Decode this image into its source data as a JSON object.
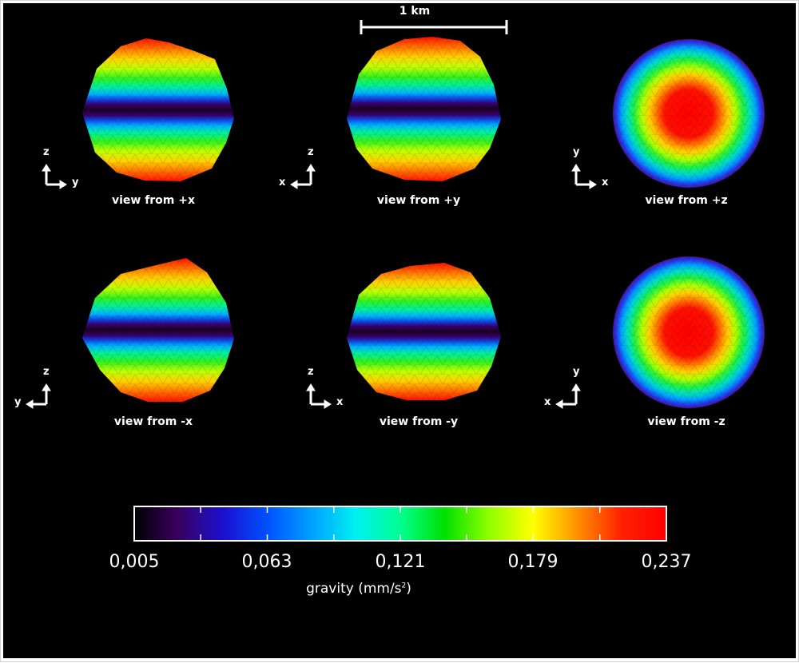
{
  "scale_bar": {
    "label": "1 km"
  },
  "views": [
    {
      "label": "view from +x",
      "axis_up": "z",
      "axis_side": "y",
      "side_dir": "right",
      "pattern": "band"
    },
    {
      "label": "view from +y",
      "axis_up": "z",
      "axis_side": "x",
      "side_dir": "left",
      "pattern": "band"
    },
    {
      "label": "view from +z",
      "axis_up": "y",
      "axis_side": "x",
      "side_dir": "right",
      "pattern": "pole"
    },
    {
      "label": "view from -x",
      "axis_up": "z",
      "axis_side": "y",
      "side_dir": "left",
      "pattern": "band"
    },
    {
      "label": "view from -y",
      "axis_up": "z",
      "axis_side": "x",
      "side_dir": "right",
      "pattern": "band"
    },
    {
      "label": "view from -z",
      "axis_up": "y",
      "axis_side": "x",
      "side_dir": "left",
      "pattern": "pole"
    }
  ],
  "colorbar": {
    "ticks": [
      "0,005",
      "0,063",
      "0,121",
      "0,179",
      "0,237"
    ],
    "title_text": "gravity (mm/s",
    "title_sup": "2",
    "title_end": ")",
    "colors": [
      "#000000",
      "#3a0060",
      "#1a10d0",
      "#0050ff",
      "#00a0ff",
      "#00f0f0",
      "#00ff90",
      "#00e000",
      "#90ff00",
      "#ffff00",
      "#ff9000",
      "#ff2000",
      "#ff0000"
    ]
  }
}
